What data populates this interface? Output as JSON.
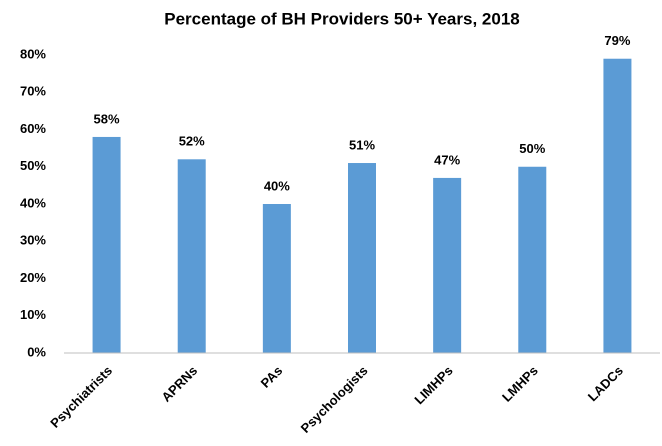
{
  "chart_data": {
    "type": "bar",
    "title": "Percentage of BH Providers 50+ Years, 2018",
    "categories": [
      "Psychiatrists",
      "APRNs",
      "PAs",
      "Psychologists",
      "LIMHPs",
      "LMHPs",
      "LADCs"
    ],
    "values": [
      58,
      52,
      40,
      51,
      47,
      50,
      79
    ],
    "value_labels": [
      "58%",
      "52%",
      "40%",
      "51%",
      "47%",
      "50%",
      "79%"
    ],
    "color": "#5b9bd5",
    "ylim": [
      0,
      80
    ],
    "yticks": [
      {
        "value": 0,
        "label": "0%"
      },
      {
        "value": 10,
        "label": "10%"
      },
      {
        "value": 20,
        "label": "20%"
      },
      {
        "value": 30,
        "label": "30%"
      },
      {
        "value": 40,
        "label": "40%"
      },
      {
        "value": 50,
        "label": "50%"
      },
      {
        "value": 60,
        "label": "60%"
      },
      {
        "value": 70,
        "label": "70%"
      },
      {
        "value": 80,
        "label": "80%"
      }
    ],
    "grid": false
  }
}
